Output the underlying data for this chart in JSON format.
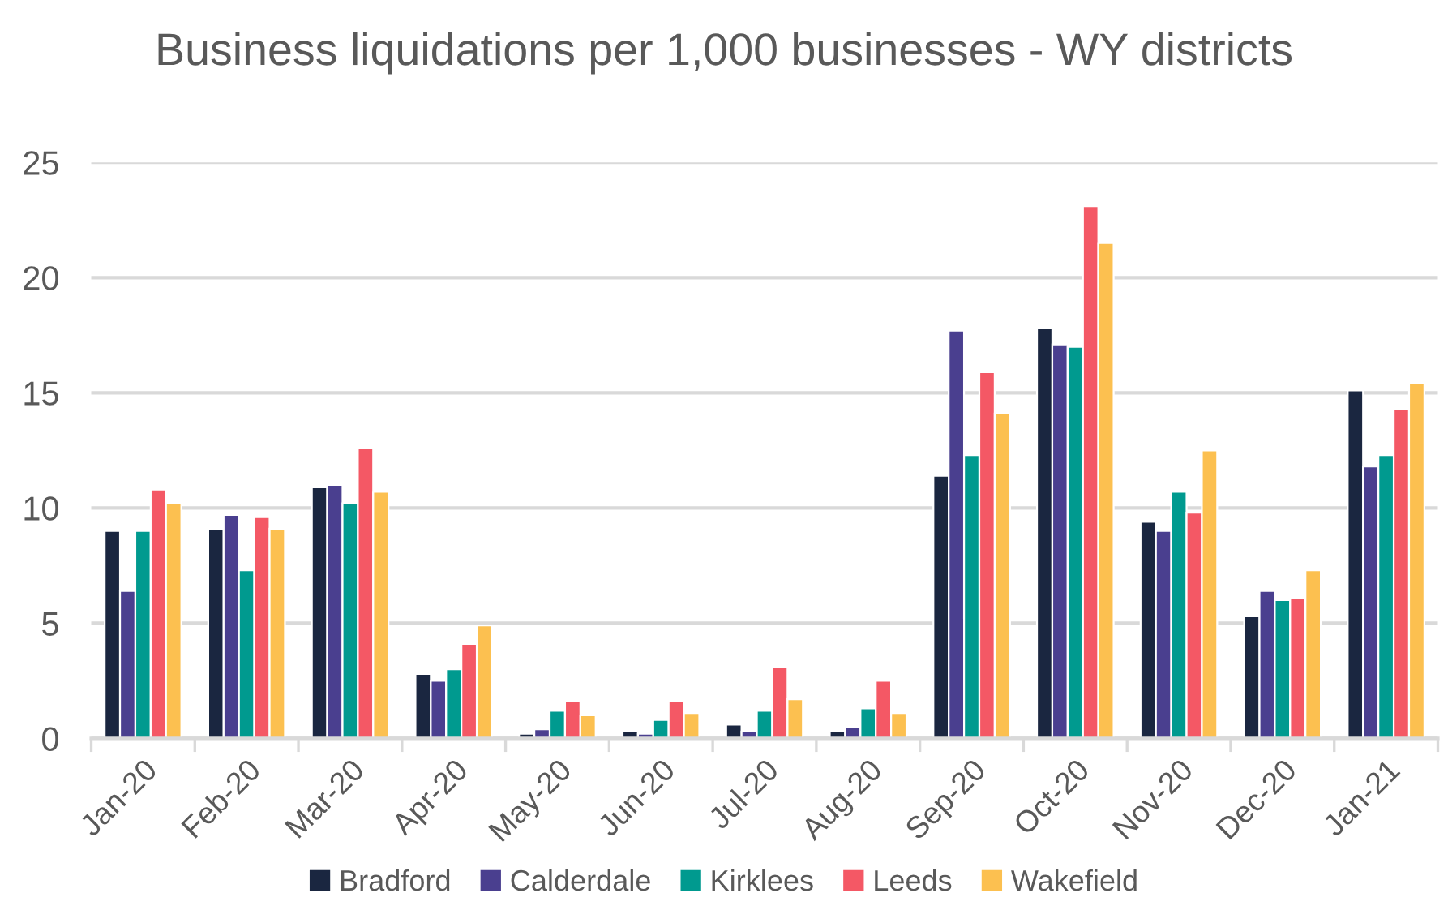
{
  "chart_data": {
    "type": "bar",
    "title": "Business liquidations per 1,000 businesses - WY districts",
    "categories": [
      "Jan-20",
      "Feb-20",
      "Mar-20",
      "Apr-20",
      "May-20",
      "Jun-20",
      "Jul-20",
      "Aug-20",
      "Sep-20",
      "Oct-20",
      "Nov-20",
      "Dec-20",
      "Jan-21"
    ],
    "series": [
      {
        "name": "Bradford",
        "color": "#1a2640",
        "values": [
          9.0,
          9.1,
          10.9,
          2.8,
          0.2,
          0.3,
          0.6,
          0.3,
          11.4,
          17.8,
          9.4,
          5.3,
          15.1
        ]
      },
      {
        "name": "Calderdale",
        "color": "#4a3f8f",
        "values": [
          6.4,
          9.7,
          11.0,
          2.5,
          0.4,
          0.2,
          0.3,
          0.5,
          17.7,
          17.1,
          9.0,
          6.4,
          11.8
        ]
      },
      {
        "name": "Kirklees",
        "color": "#009a8f",
        "values": [
          9.0,
          7.3,
          10.2,
          3.0,
          1.2,
          0.8,
          1.2,
          1.3,
          12.3,
          17.0,
          10.7,
          6.0,
          12.3
        ]
      },
      {
        "name": "Leeds",
        "color": "#f45865",
        "values": [
          10.8,
          9.6,
          12.6,
          4.1,
          1.6,
          1.6,
          3.1,
          2.5,
          15.9,
          23.1,
          9.8,
          6.1,
          14.3
        ]
      },
      {
        "name": "Wakefield",
        "color": "#fcc050",
        "values": [
          10.2,
          9.1,
          10.7,
          4.9,
          1.0,
          1.1,
          1.7,
          1.1,
          14.1,
          21.5,
          12.5,
          7.3,
          15.4
        ]
      }
    ],
    "ylim": [
      0,
      25
    ],
    "yticks": [
      0,
      5,
      10,
      15,
      20,
      25
    ],
    "grid": "y",
    "legend": "bottom"
  }
}
